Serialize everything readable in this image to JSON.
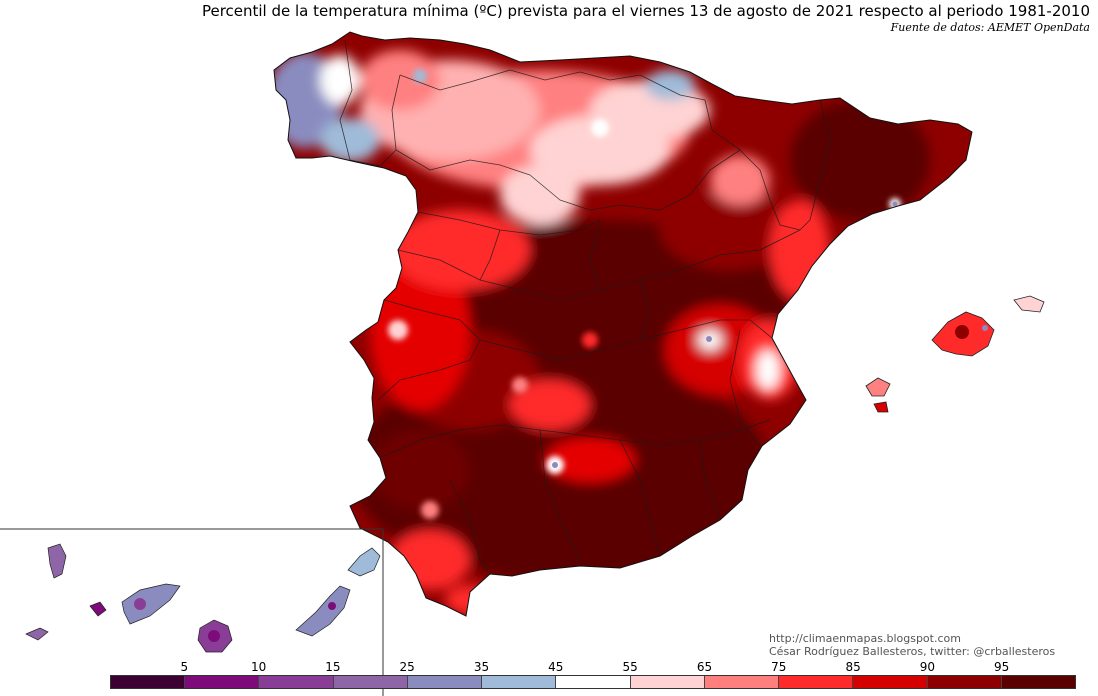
{
  "title": "Percentil de la temperatura mínima (ºC) prevista para el viernes 13 de agosto de 2021 respecto al periodo 1981-2010",
  "source": "Fuente de datos: AEMET OpenData",
  "credits": {
    "url": "http://climaenmapas.blogspot.com",
    "author": "César Rodríguez Ballesteros, twitter: @crballesteros"
  },
  "legend": {
    "labels": [
      "5",
      "10",
      "15",
      "25",
      "35",
      "45",
      "55",
      "65",
      "75",
      "85",
      "90",
      "95"
    ],
    "colors": [
      "#3d0032",
      "#7d0c7a",
      "#8a3d96",
      "#8e66a8",
      "#8a8cc0",
      "#9fbbd9",
      "#ffffff",
      "#ffd3d3",
      "#ff7f7f",
      "#ff2b2b",
      "#d50000",
      "#8e0000",
      "#5a0000"
    ]
  }
}
